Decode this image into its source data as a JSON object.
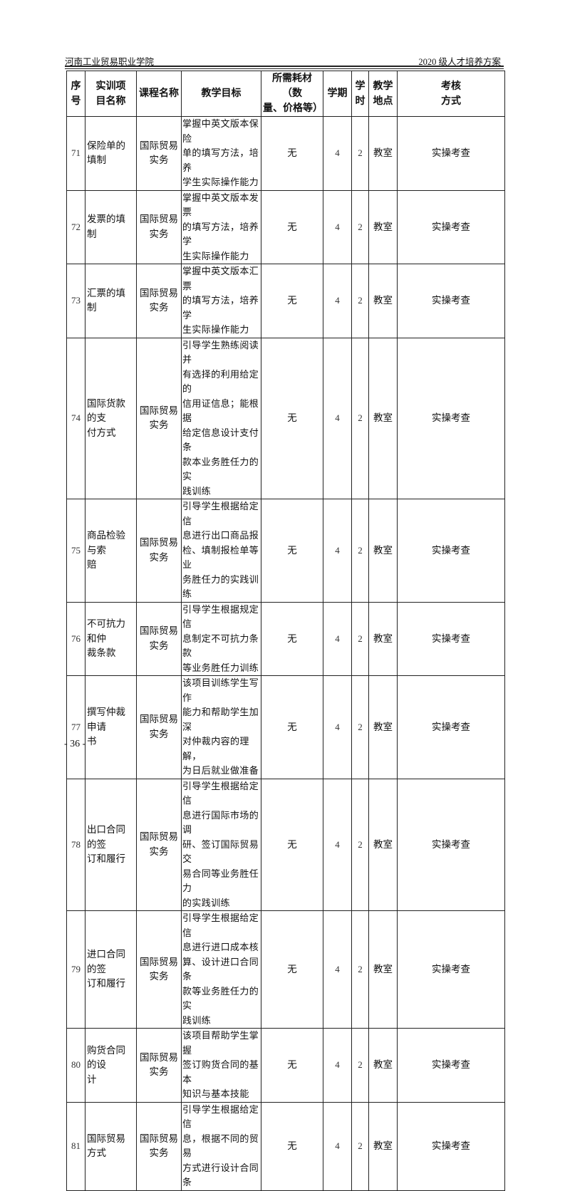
{
  "header": {
    "institution": "河南工业贸易职业学院",
    "document": "2020 级人才培养方案"
  },
  "table": {
    "columns": [
      "序\n号",
      "实训项\n目名称",
      "课程名称",
      "教学目标",
      "所需耗材（数\n量、价格等）",
      "学期",
      "学\n时",
      "教学\n地点",
      "考核\n方式"
    ],
    "rows": [
      {
        "no": "71",
        "project": "保险单的填制",
        "course": "国际贸易\n实务",
        "goal": "掌握中英文版本保险\n单的填写方法，培养\n学生实际操作能力",
        "materials": "无",
        "term": "4",
        "hours": "2",
        "place": "教室",
        "assessment": "实操考查"
      },
      {
        "no": "72",
        "project": "发票的填制",
        "course": "国际贸易\n实务",
        "goal": "掌握中英文版本发票\n的填写方法，培养学\n生实际操作能力",
        "materials": "无",
        "term": "4",
        "hours": "2",
        "place": "教室",
        "assessment": "实操考查"
      },
      {
        "no": "73",
        "project": "汇票的填制",
        "course": "国际贸易\n实务",
        "goal": "掌握中英文版本汇票\n的填写方法，培养学\n生实际操作能力",
        "materials": "无",
        "term": "4",
        "hours": "2",
        "place": "教室",
        "assessment": "实操考查"
      },
      {
        "no": "74",
        "project": "国际货款的支\n付方式",
        "course": "国际贸易\n实务",
        "goal": "引导学生熟练阅读并\n有选择的利用给定的\n信用证信息；能根据\n给定信息设计支付条\n款本业务胜任力的实\n践训练",
        "materials": "无",
        "term": "4",
        "hours": "2",
        "place": "教室",
        "assessment": "实操考查"
      },
      {
        "no": "75",
        "project": "商品检验与索\n赔",
        "course": "国际贸易\n实务",
        "goal": "引导学生根据给定信\n息进行出口商品报\n检、填制报检单等业\n务胜任力的实践训练",
        "materials": "无",
        "term": "4",
        "hours": "2",
        "place": "教室",
        "assessment": "实操考查"
      },
      {
        "no": "76",
        "project": "不可抗力和仲\n裁条款",
        "course": "国际贸易\n实务",
        "goal": "引导学生根据规定信\n息制定不可抗力条款\n等业务胜任力训练",
        "materials": "无",
        "term": "4",
        "hours": "2",
        "place": "教室",
        "assessment": "实操考查"
      },
      {
        "no": "77",
        "project": "撰写仲裁申请\n书",
        "course": "国际贸易\n实务",
        "goal": "该项目训练学生写作\n能力和帮助学生加深\n对仲裁内容的理解，\n为日后就业做准备",
        "materials": "无",
        "term": "4",
        "hours": "2",
        "place": "教室",
        "assessment": "实操考查"
      },
      {
        "no": "78",
        "project": "出口合同的签\n订和履行",
        "course": "国际贸易\n实务",
        "goal": "引导学生根据给定信\n息进行国际市场的调\n研、签订国际贸易交\n易合同等业务胜任力\n的实践训练",
        "materials": "无",
        "term": "4",
        "hours": "2",
        "place": "教室",
        "assessment": "实操考查"
      },
      {
        "no": "79",
        "project": "进口合同的签\n订和履行",
        "course": "国际贸易\n实务",
        "goal": "引导学生根据给定信\n息进行进口成本核\n算、设计进口合同条\n款等业务胜任力的实\n践训练",
        "materials": "无",
        "term": "4",
        "hours": "2",
        "place": "教室",
        "assessment": "实操考查"
      },
      {
        "no": "80",
        "project": "购货合同的设\n计",
        "course": "国际贸易\n实务",
        "goal": "该项目帮助学生掌握\n签订购货合同的基本\n知识与基本技能",
        "materials": "无",
        "term": "4",
        "hours": "2",
        "place": "教室",
        "assessment": "实操考查"
      },
      {
        "no": "81",
        "project": "国际贸易方式",
        "course": "国际贸易\n实务",
        "goal": "引导学生根据给定信\n息，根据不同的贸易\n方式进行设计合同条",
        "materials": "无",
        "term": "4",
        "hours": "2",
        "place": "教室",
        "assessment": "实操考查"
      }
    ]
  },
  "footer": {
    "page_number": "- 36 -"
  }
}
